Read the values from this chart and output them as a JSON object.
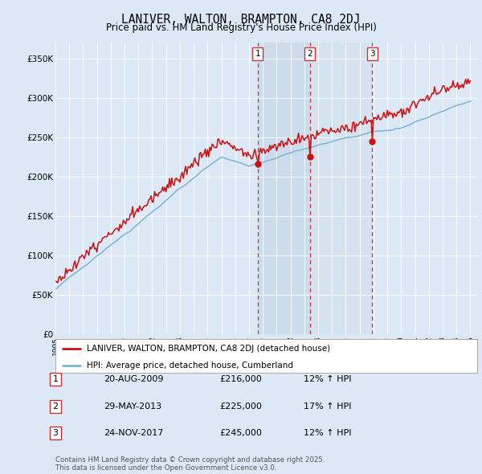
{
  "title": "LANIVER, WALTON, BRAMPTON, CA8 2DJ",
  "subtitle": "Price paid vs. HM Land Registry's House Price Index (HPI)",
  "ylabel_ticks": [
    "£0",
    "£50K",
    "£100K",
    "£150K",
    "£200K",
    "£250K",
    "£300K",
    "£350K"
  ],
  "ytick_values": [
    0,
    50000,
    100000,
    150000,
    200000,
    250000,
    300000,
    350000
  ],
  "ylim": [
    0,
    370000
  ],
  "xlim_start": 1995.0,
  "xlim_end": 2025.5,
  "background_color": "#dce8f5",
  "plot_bg_color": "#dce8f5",
  "hpi_color": "#7fb3d3",
  "price_color": "#cc1111",
  "vline_color": "#cc3333",
  "vspan_color": "#c8d8eb",
  "legend_label_price": "LANIVER, WALTON, BRAMPTON, CA8 2DJ (detached house)",
  "legend_label_hpi": "HPI: Average price, detached house, Cumberland",
  "sale_points": [
    {
      "num": 1,
      "date": "20-AUG-2009",
      "price": 216000,
      "year": 2009.63,
      "pct": "12%",
      "dir": "↑"
    },
    {
      "num": 2,
      "date": "29-MAY-2013",
      "price": 225000,
      "year": 2013.41,
      "pct": "17%",
      "dir": "↑"
    },
    {
      "num": 3,
      "date": "24-NOV-2017",
      "price": 245000,
      "year": 2017.9,
      "pct": "12%",
      "dir": "↑"
    }
  ],
  "footer": "Contains HM Land Registry data © Crown copyright and database right 2025.\nThis data is licensed under the Open Government Licence v3.0."
}
